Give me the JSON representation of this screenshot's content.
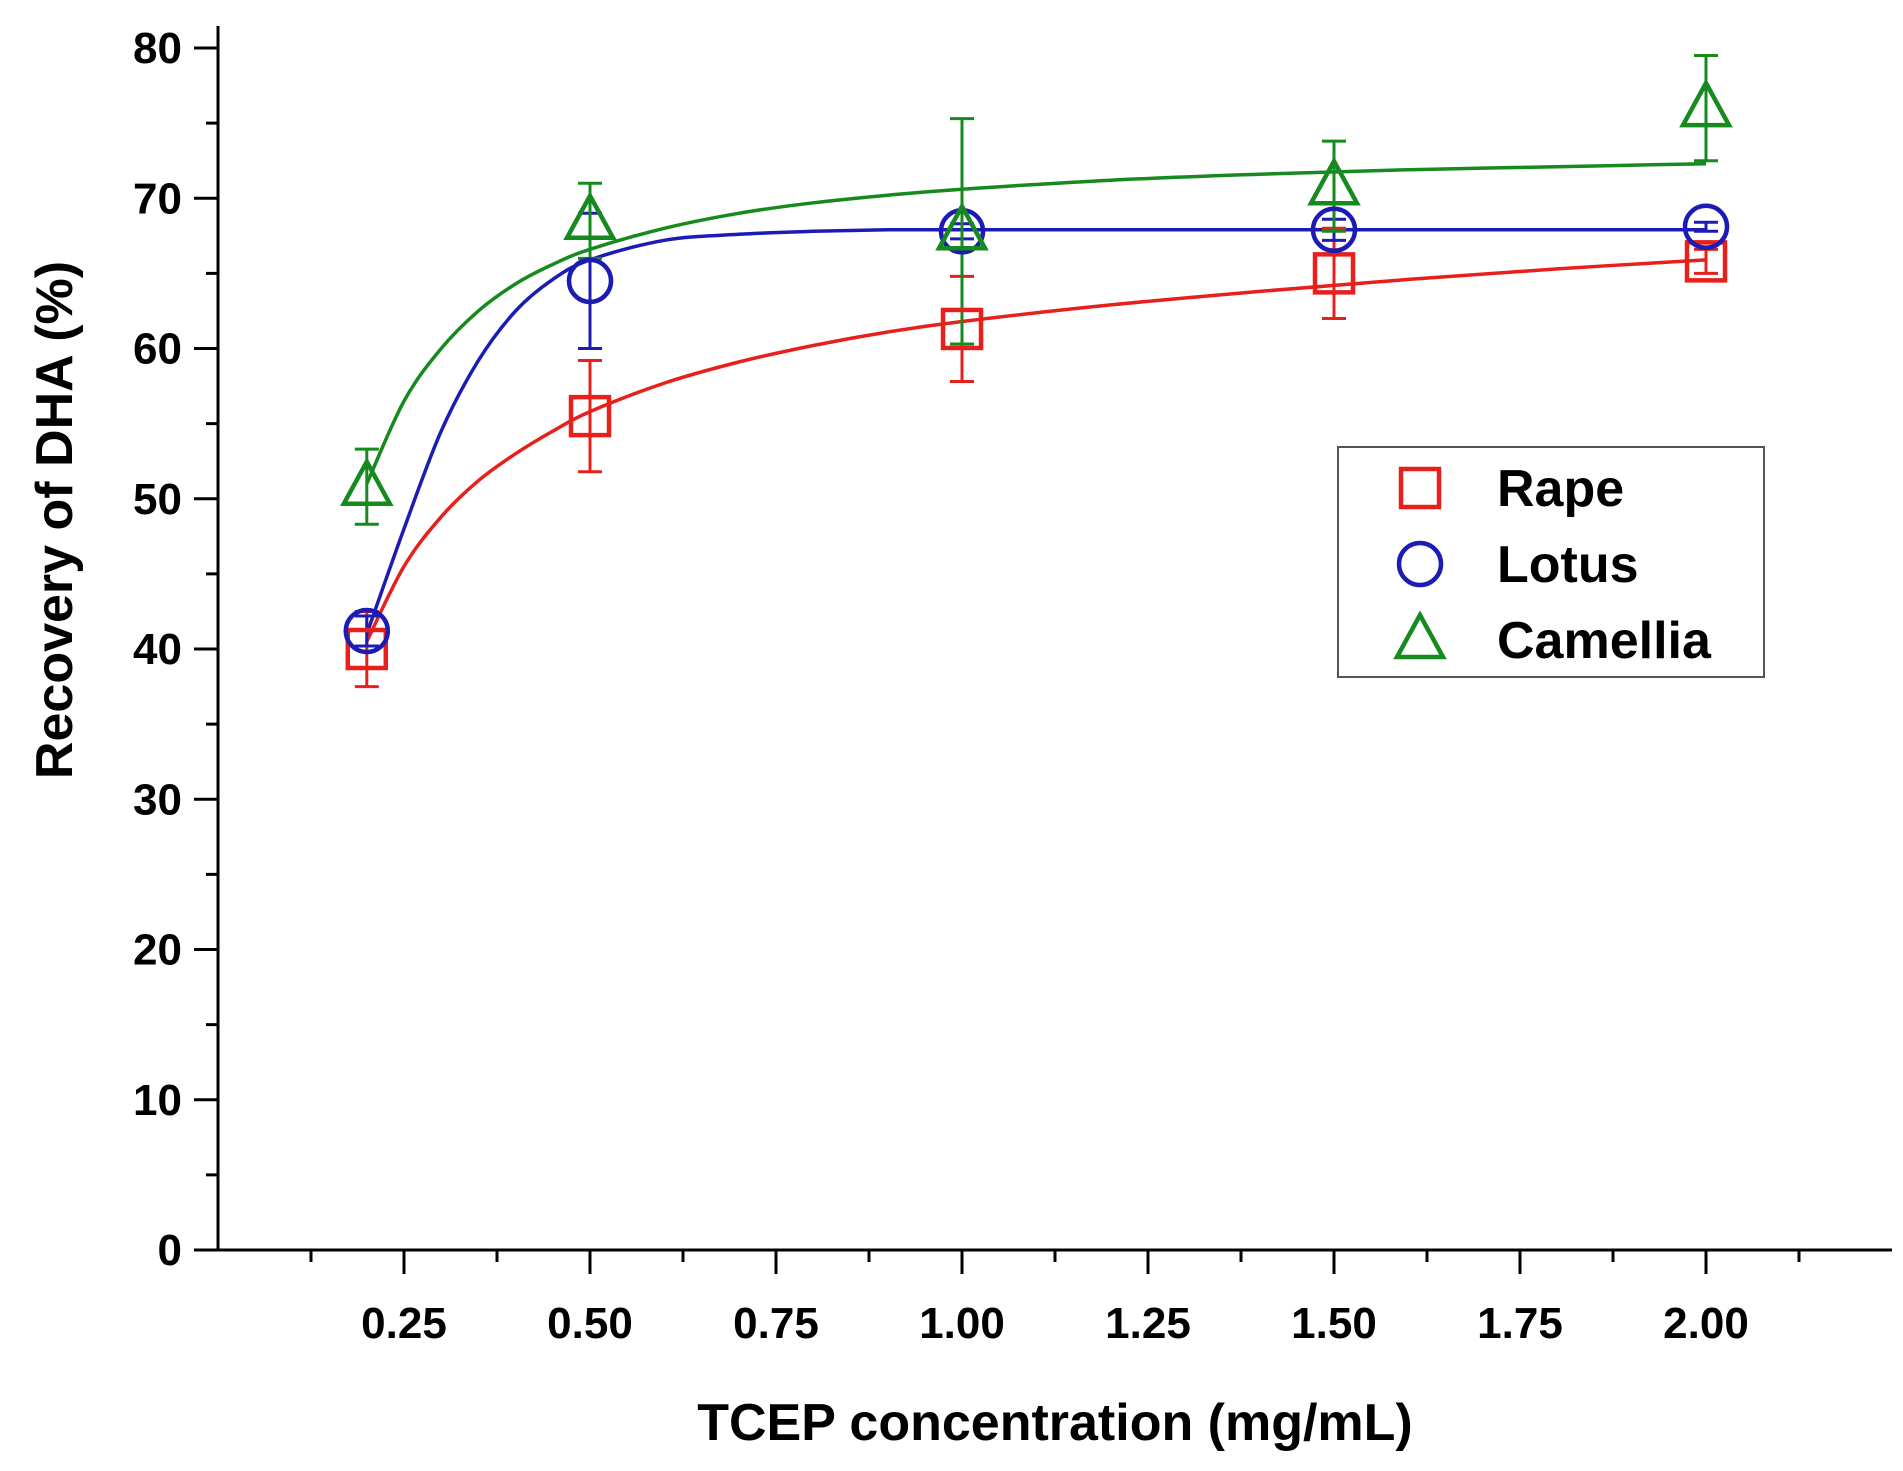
{
  "chart_data": {
    "type": "scatter",
    "title": "",
    "xlabel": "TCEP concentration (mg/mL)",
    "ylabel": "Recovery of DHA (%)",
    "xlim": [
      0.0,
      2.25
    ],
    "ylim": [
      0,
      80
    ],
    "x_ticks": [
      "0.25",
      "0.50",
      "0.75",
      "1.00",
      "1.25",
      "1.50",
      "1.75",
      "2.00"
    ],
    "y_ticks": [
      "0",
      "10",
      "20",
      "30",
      "40",
      "50",
      "60",
      "70",
      "80"
    ],
    "grid": false,
    "legend_position": "center-right",
    "series": [
      {
        "name": "Rape",
        "marker": "square",
        "color": "#e8201c",
        "x": [
          0.2,
          0.5,
          1.0,
          1.5,
          2.0
        ],
        "y": [
          40.0,
          55.5,
          61.3,
          65.0,
          65.8
        ],
        "err": [
          2.5,
          3.7,
          3.5,
          3.0,
          0.8
        ],
        "fit_x": [
          0.2,
          0.25,
          0.3,
          0.35,
          0.4,
          0.45,
          0.5,
          0.6,
          0.7,
          0.8,
          0.9,
          1.0,
          1.2,
          1.4,
          1.6,
          1.8,
          2.0
        ],
        "fit_y": [
          40.5,
          45.5,
          48.8,
          51.2,
          53.0,
          54.5,
          55.8,
          57.7,
          59.1,
          60.2,
          61.1,
          61.8,
          62.9,
          63.8,
          64.6,
          65.3,
          65.9
        ]
      },
      {
        "name": "Lotus",
        "marker": "circle",
        "color": "#1c1cb4",
        "x": [
          0.2,
          0.5,
          1.0,
          1.5,
          2.0
        ],
        "y": [
          41.2,
          64.5,
          67.8,
          67.9,
          68.1
        ],
        "err": [
          1.0,
          4.5,
          0.5,
          0.7,
          0.3
        ],
        "fit_x": [
          0.2,
          0.25,
          0.3,
          0.35,
          0.4,
          0.45,
          0.5,
          0.6,
          0.7,
          0.8,
          0.9,
          1.0,
          1.2,
          1.4,
          1.6,
          1.8,
          2.0
        ],
        "fit_y": [
          41.0,
          48.0,
          54.5,
          59.2,
          62.5,
          64.6,
          65.9,
          67.2,
          67.6,
          67.8,
          67.9,
          67.9,
          67.9,
          67.9,
          67.9,
          67.9,
          67.9
        ]
      },
      {
        "name": "Camellia",
        "marker": "triangle",
        "color": "#168a1e",
        "x": [
          0.2,
          0.5,
          1.0,
          1.5,
          2.0
        ],
        "y": [
          50.8,
          68.5,
          67.8,
          70.8,
          76.0
        ],
        "err": [
          2.5,
          2.5,
          7.5,
          3.0,
          3.5
        ],
        "fit_x": [
          0.2,
          0.25,
          0.3,
          0.35,
          0.4,
          0.45,
          0.5,
          0.6,
          0.7,
          0.8,
          0.9,
          1.0,
          1.2,
          1.4,
          1.6,
          1.8,
          2.0
        ],
        "fit_y": [
          51.0,
          56.5,
          60.0,
          62.5,
          64.3,
          65.6,
          66.6,
          68.0,
          69.0,
          69.7,
          70.2,
          70.6,
          71.2,
          71.6,
          71.9,
          72.1,
          72.3
        ]
      }
    ]
  }
}
